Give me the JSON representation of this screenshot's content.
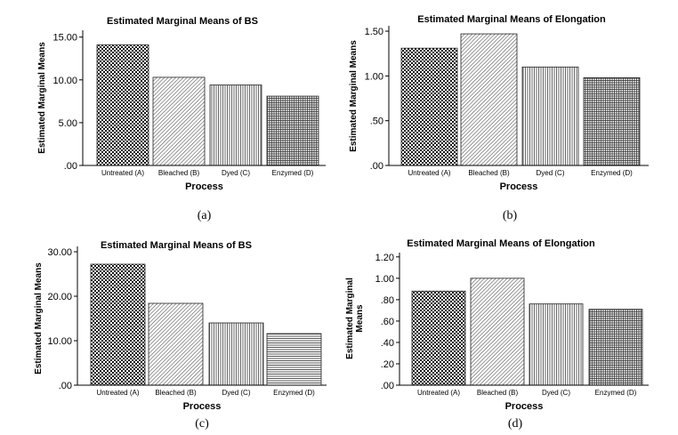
{
  "chart_data": [
    {
      "type": "bar",
      "title": "Estimated Marginal Means of BS",
      "xlabel": "Process",
      "ylabel": [
        "Estimated Marginal Means"
      ],
      "caption": "(a)",
      "categories": [
        "Untreated (A)",
        "Bleached (B)",
        "Dyed (C)",
        "Enzymed (D)"
      ],
      "values": [
        14.1,
        10.3,
        9.4,
        8.1
      ],
      "ylim": [
        0,
        15.8
      ],
      "yticks": [
        0,
        5,
        10,
        15
      ],
      "ytick_labels": [
        ".00",
        "5.00",
        "10.00",
        "15.00"
      ],
      "grid": false
    },
    {
      "type": "bar",
      "title": "Estimated Marginal Means of Elongation",
      "xlabel": "Process",
      "ylabel": [
        "Estimated Marginal Means"
      ],
      "caption": "(b)",
      "categories": [
        "Untreated (A)",
        "Bleached (B)",
        "Dyed (C)",
        "Enzymed (D)"
      ],
      "values": [
        1.31,
        1.47,
        1.1,
        0.98
      ],
      "ylim": [
        0,
        1.56
      ],
      "yticks": [
        0,
        0.5,
        1.0,
        1.5
      ],
      "ytick_labels": [
        ".00",
        ".50",
        "1.00",
        "1.50"
      ],
      "grid": false
    },
    {
      "type": "bar",
      "title": "Estimated Marginal Means of BS",
      "xlabel": "Process",
      "ylabel": [
        "Estimated Marginal Means"
      ],
      "caption": "(c)",
      "categories": [
        "Untreated (A)",
        "Bleached (B)",
        "Dyed (C)",
        "Enzymed (D)"
      ],
      "values": [
        27.2,
        18.4,
        14.0,
        11.6
      ],
      "ylim": [
        0,
        31.2
      ],
      "yticks": [
        0,
        10,
        20,
        30
      ],
      "ytick_labels": [
        ".00",
        "10.00",
        "20.00",
        "30.00"
      ],
      "grid": false
    },
    {
      "type": "bar",
      "title": "Estimated Marginal Means of Elongation",
      "xlabel": "Process",
      "ylabel": [
        "Estimated Marginal",
        "Means"
      ],
      "caption": "(d)",
      "categories": [
        "Untreated (A)",
        "Bleached (B)",
        "Dyed (C)",
        "Enzymed (D)"
      ],
      "values": [
        0.88,
        1.0,
        0.76,
        0.71
      ],
      "ylim": [
        0,
        1.24
      ],
      "yticks": [
        0,
        0.2,
        0.4,
        0.6,
        0.8,
        1.0,
        1.2
      ],
      "ytick_labels": [
        ".00",
        ".20",
        ".40",
        ".60",
        ".80",
        "1.00",
        "1.20"
      ],
      "grid": false
    }
  ]
}
